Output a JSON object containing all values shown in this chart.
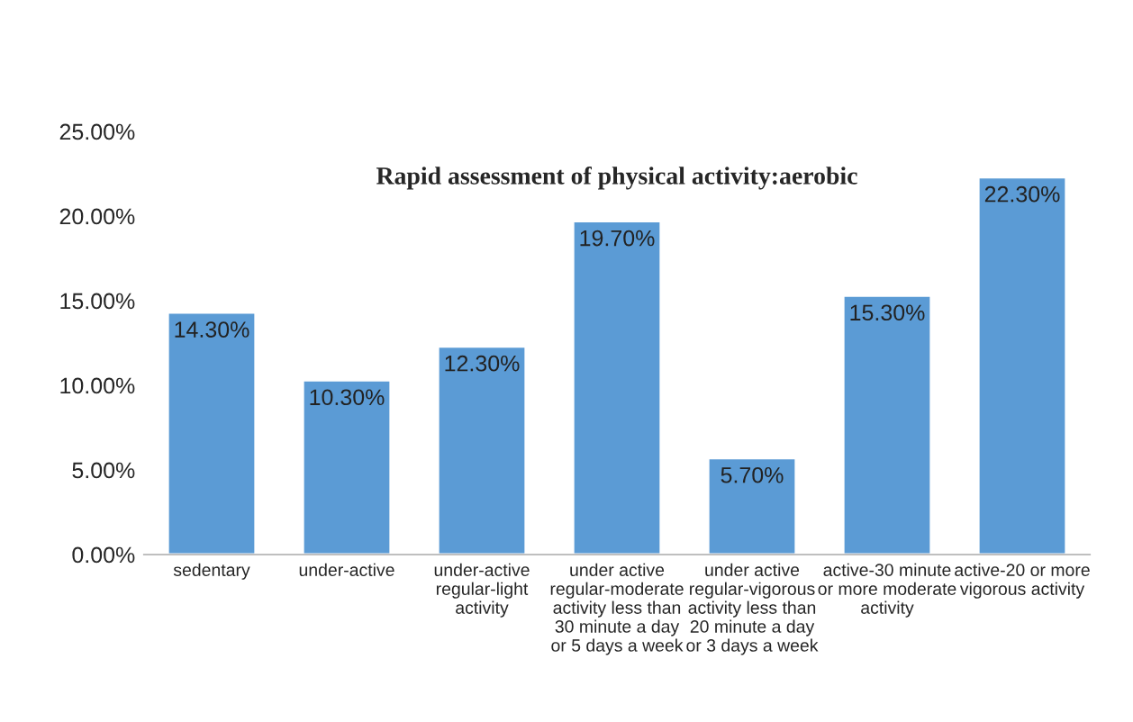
{
  "chart_data": {
    "type": "bar",
    "title": "Rapid assessment of physical activity:aerobic",
    "categories": [
      "sedentary",
      "under-active",
      "under-active\nregular-light\nactivity",
      "under active\nregular-moderate\nactivity less than\n30 minute a day\nor 5 days a week",
      "under active\nregular-vigorous\nactivity less than\n20 minute a day\nor 3 days a week",
      "active-30 minute\nor more moderate\nactivity",
      "active-20 or more\nvigorous activity"
    ],
    "values": [
      14.3,
      10.3,
      12.3,
      19.7,
      5.7,
      15.3,
      22.3
    ],
    "value_labels": [
      "14.30%",
      "10.30%",
      "12.30%",
      "19.70%",
      "5.70%",
      "15.30%",
      "22.30%"
    ],
    "color": "#5b9bd5",
    "ylim": [
      0,
      25
    ],
    "yticks": [
      {
        "value": 0,
        "label": "0.00%"
      },
      {
        "value": 5,
        "label": "5.00%"
      },
      {
        "value": 10,
        "label": "10.00%"
      },
      {
        "value": 15,
        "label": "15.00%"
      },
      {
        "value": 20,
        "label": "20.00%"
      },
      {
        "value": 25,
        "label": "25.00%"
      }
    ],
    "grid": false,
    "legend": false
  }
}
